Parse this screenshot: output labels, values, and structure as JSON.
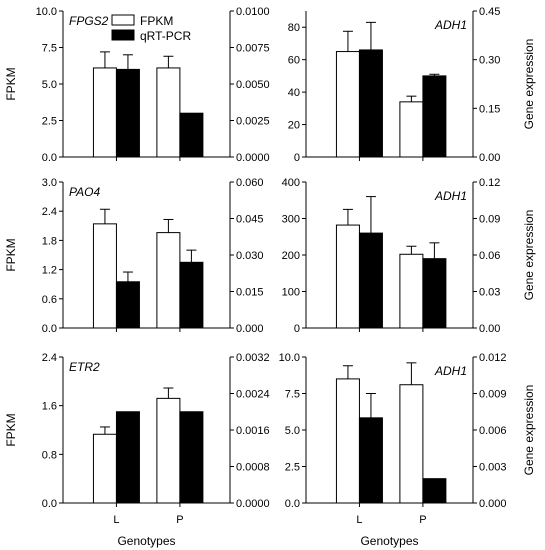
{
  "chart_data": [
    {
      "type": "bar",
      "gene": "FPGS2",
      "categories": [
        "L",
        "P"
      ],
      "series": [
        {
          "name": "FPKM",
          "axis": "left",
          "values": [
            6.1,
            6.1
          ],
          "errors": [
            1.1,
            0.8
          ]
        },
        {
          "name": "qRT-PCR",
          "axis": "right",
          "values": [
            0.006,
            0.003
          ],
          "errors": [
            0.001,
            0
          ]
        }
      ],
      "left_axis": {
        "label": "FPKM",
        "ylim": [
          0,
          10
        ],
        "ticks": [
          "0.0",
          "2.5",
          "5.0",
          "7.5",
          "10.0"
        ]
      },
      "right_axis": {
        "label": "",
        "ylim": [
          0,
          0.01
        ],
        "ticks": [
          "0.0000",
          "0.0025",
          "0.0050",
          "0.0075",
          "0.0100"
        ]
      },
      "xlabel": "",
      "legend": {
        "placement": "top",
        "entries": [
          "FPKM",
          "qRT-PCR"
        ]
      },
      "grid": false
    },
    {
      "type": "bar",
      "gene": "ADH1",
      "categories": [
        "L",
        "P"
      ],
      "series": [
        {
          "name": "FPKM",
          "axis": "left",
          "values": [
            65,
            34
          ],
          "errors": [
            12.5,
            3.5
          ]
        },
        {
          "name": "qRT-PCR",
          "axis": "right",
          "values": [
            0.33,
            0.25
          ],
          "errors": [
            0.085,
            0.005
          ]
        }
      ],
      "left_axis": {
        "label": "",
        "ylim": [
          0,
          90
        ],
        "ticks": [
          "0",
          "20",
          "40",
          "60",
          "80"
        ]
      },
      "right_axis": {
        "label": "Gene expression",
        "ylim": [
          0,
          0.45
        ],
        "ticks": [
          "0.00",
          "0.15",
          "0.30",
          "0.45"
        ]
      },
      "xlabel": "",
      "grid": false
    },
    {
      "type": "bar",
      "gene": "PAO4",
      "categories": [
        "L",
        "P"
      ],
      "series": [
        {
          "name": "FPKM",
          "axis": "left",
          "values": [
            2.14,
            1.96
          ],
          "errors": [
            0.3,
            0.27
          ]
        },
        {
          "name": "qRT-PCR",
          "axis": "right",
          "values": [
            0.019,
            0.027
          ],
          "errors": [
            0.004,
            0.005
          ]
        }
      ],
      "left_axis": {
        "label": "FPKM",
        "ylim": [
          0,
          3
        ],
        "ticks": [
          "0.0",
          "0.6",
          "1.2",
          "1.8",
          "2.4",
          "3.0"
        ]
      },
      "right_axis": {
        "label": "",
        "ylim": [
          0,
          0.06
        ],
        "ticks": [
          "0.000",
          "0.015",
          "0.030",
          "0.045",
          "0.060"
        ]
      },
      "xlabel": "",
      "grid": false
    },
    {
      "type": "bar",
      "gene": "ADH1",
      "categories": [
        "L",
        "P"
      ],
      "series": [
        {
          "name": "FPKM",
          "axis": "left",
          "values": [
            282,
            202
          ],
          "errors": [
            43,
            22
          ]
        },
        {
          "name": "qRT-PCR",
          "axis": "right",
          "values": [
            0.078,
            0.057
          ],
          "errors": [
            0.03,
            0.013
          ]
        }
      ],
      "left_axis": {
        "label": "",
        "ylim": [
          0,
          400
        ],
        "ticks": [
          "0",
          "100",
          "200",
          "300",
          "400"
        ]
      },
      "right_axis": {
        "label": "Gene expression",
        "ylim": [
          0,
          0.12
        ],
        "ticks": [
          "0.00",
          "0.03",
          "0.06",
          "0.09",
          "0.12"
        ]
      },
      "xlabel": "",
      "grid": false
    },
    {
      "type": "bar",
      "gene": "ETR2",
      "categories": [
        "L",
        "P"
      ],
      "series": [
        {
          "name": "FPKM",
          "axis": "left",
          "values": [
            1.13,
            1.72
          ],
          "errors": [
            0.12,
            0.17
          ]
        },
        {
          "name": "qRT-PCR",
          "axis": "right",
          "values": [
            0.002,
            0.002
          ],
          "errors": [
            0,
            0
          ]
        }
      ],
      "left_axis": {
        "label": "FPKM",
        "ylim": [
          0,
          2.4
        ],
        "ticks": [
          "0.0",
          "0.8",
          "1.6",
          "2.4"
        ]
      },
      "right_axis": {
        "label": "",
        "ylim": [
          0,
          0.0032
        ],
        "ticks": [
          "0.0000",
          "0.0008",
          "0.0016",
          "0.0024",
          "0.0032"
        ]
      },
      "xlabel": "Genotypes",
      "grid": false
    },
    {
      "type": "bar",
      "gene": "ADH1",
      "categories": [
        "L",
        "P"
      ],
      "series": [
        {
          "name": "FPKM",
          "axis": "left",
          "values": [
            8.5,
            8.1
          ],
          "errors": [
            0.9,
            1.5
          ]
        },
        {
          "name": "qRT-PCR",
          "axis": "right",
          "values": [
            0.007,
            0.002
          ],
          "errors": [
            0.002,
            0
          ]
        }
      ],
      "left_axis": {
        "label": "",
        "ylim": [
          0,
          10
        ],
        "ticks": [
          "0.0",
          "2.5",
          "5.0",
          "7.5",
          "10.0"
        ]
      },
      "right_axis": {
        "label": "Gene expression",
        "ylim": [
          0,
          0.012
        ],
        "ticks": [
          "0.000",
          "0.003",
          "0.006",
          "0.009",
          "0.012"
        ]
      },
      "xlabel": "Genotypes",
      "grid": false
    }
  ],
  "colors": {
    "fpkm_fill": "#ffffff",
    "qrtpcr_fill": "#000000",
    "stroke": "#000000"
  }
}
